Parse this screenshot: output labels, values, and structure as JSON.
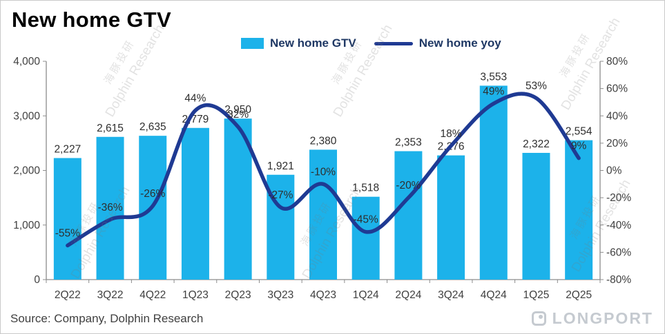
{
  "title": "New home GTV",
  "legend": {
    "bar_label": "New home GTV",
    "line_label": "New home yoy",
    "bar_color": "#1CB2EA",
    "line_color": "#1F3A93"
  },
  "source": "Source: Company, Dolphin Research",
  "watermark": {
    "cn": "海豚投研",
    "en": "Dolphin Research"
  },
  "logo_text": "LONGPORT",
  "chart_data": {
    "type": "bar+line",
    "title": "New home GTV",
    "categories": [
      "2Q22",
      "3Q22",
      "4Q22",
      "1Q23",
      "2Q23",
      "3Q23",
      "4Q23",
      "1Q24",
      "2Q24",
      "3Q24",
      "4Q24",
      "1Q25",
      "2Q25"
    ],
    "series": [
      {
        "name": "New home GTV",
        "type": "bar",
        "axis": "left",
        "color": "#1CB2EA",
        "values": [
          2227,
          2615,
          2635,
          2779,
          2950,
          1921,
          2380,
          1518,
          2353,
          2276,
          3553,
          2322,
          2554
        ]
      },
      {
        "name": "New home yoy",
        "type": "line",
        "axis": "right",
        "color": "#1F3A93",
        "values": [
          -55,
          -36,
          -26,
          44,
          32,
          -27,
          -10,
          -45,
          -20,
          18,
          49,
          53,
          9
        ]
      }
    ],
    "left_axis": {
      "min": 0,
      "max": 4000,
      "ticks": [
        "4,000",
        "3,000",
        "2,000",
        "1,000",
        "0"
      ]
    },
    "right_axis": {
      "min": -80,
      "max": 80,
      "ticks": [
        "80%",
        "60%",
        "40%",
        "20%",
        "0%",
        "-20%",
        "-40%",
        "-60%",
        "-80%"
      ]
    },
    "grid": false,
    "legend_position": "top-center"
  }
}
